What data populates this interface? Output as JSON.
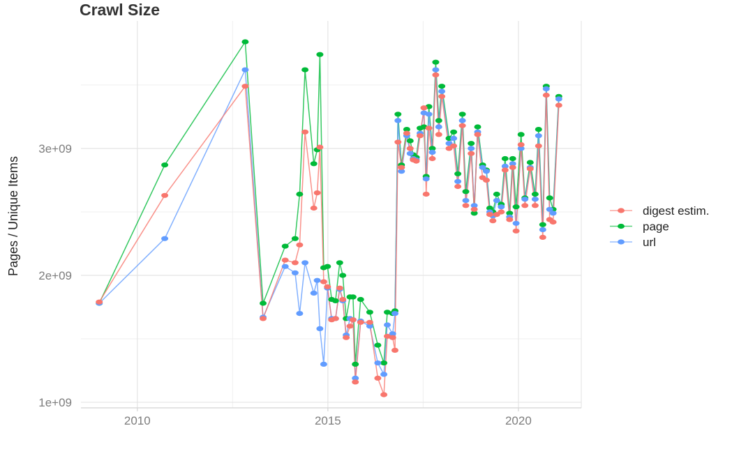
{
  "chart_data": {
    "type": "line",
    "title": "Crawl Size",
    "xlabel": "",
    "ylabel": "Pages / Unique Items",
    "y_values_unit": "billions (1e9)",
    "grid": true,
    "legend_position": "right",
    "xlim": [
      2008.52,
      2021.65
    ],
    "ylim": [
      0.956,
      4.005
    ],
    "x_ticks": [
      {
        "v": 2010,
        "label": "2010"
      },
      {
        "v": 2015,
        "label": "2015"
      },
      {
        "v": 2020,
        "label": "2020"
      }
    ],
    "x_minor": [
      2012.5,
      2017.5
    ],
    "y_ticks": [
      {
        "v": 1,
        "label": "1e+09"
      },
      {
        "v": 2,
        "label": "2e+09"
      },
      {
        "v": 3,
        "label": "3e+09"
      }
    ],
    "y_minor": [
      1.5,
      2.5,
      3.5
    ],
    "x": [
      2009.0,
      2010.72,
      2012.83,
      2013.3,
      2013.88,
      2014.14,
      2014.26,
      2014.4,
      2014.63,
      2014.72,
      2014.79,
      2014.89,
      2014.99,
      2015.1,
      2015.2,
      2015.31,
      2015.39,
      2015.48,
      2015.58,
      2015.66,
      2015.72,
      2015.86,
      2016.1,
      2016.31,
      2016.47,
      2016.56,
      2016.7,
      2016.76,
      2016.84,
      2016.93,
      2017.07,
      2017.16,
      2017.24,
      2017.32,
      2017.42,
      2017.52,
      2017.58,
      2017.65,
      2017.74,
      2017.83,
      2017.91,
      2017.99,
      2018.18,
      2018.3,
      2018.41,
      2018.53,
      2018.62,
      2018.76,
      2018.84,
      2018.93,
      2019.06,
      2019.16,
      2019.25,
      2019.33,
      2019.43,
      2019.55,
      2019.65,
      2019.77,
      2019.85,
      2019.94,
      2020.07,
      2020.17,
      2020.31,
      2020.44,
      2020.53,
      2020.64,
      2020.73,
      2020.82,
      2020.91,
      2021.06
    ],
    "series": [
      {
        "name": "digest estim.",
        "color": "#F8766D",
        "values": [
          1.79,
          2.63,
          3.49,
          1.66,
          2.12,
          2.1,
          2.24,
          3.13,
          2.53,
          2.65,
          3.01,
          1.95,
          1.91,
          1.65,
          1.66,
          1.9,
          1.81,
          1.51,
          1.6,
          1.65,
          1.16,
          1.63,
          1.63,
          1.19,
          1.06,
          1.52,
          1.51,
          1.41,
          3.05,
          2.85,
          3.12,
          3.0,
          2.91,
          2.9,
          3.1,
          3.32,
          2.64,
          3.16,
          2.92,
          3.58,
          3.11,
          3.41,
          3.0,
          3.02,
          2.7,
          3.18,
          2.55,
          2.96,
          2.52,
          3.11,
          2.77,
          2.75,
          2.48,
          2.43,
          2.48,
          2.5,
          2.83,
          2.44,
          2.85,
          2.35,
          3.03,
          2.55,
          2.84,
          2.55,
          3.02,
          2.3,
          3.42,
          2.44,
          2.42,
          3.34
        ]
      },
      {
        "name": "page",
        "color": "#00BA38",
        "values": [
          1.78,
          2.87,
          3.84,
          1.78,
          2.23,
          2.29,
          2.64,
          3.62,
          2.88,
          2.99,
          3.74,
          2.06,
          2.07,
          1.81,
          1.8,
          2.1,
          2.0,
          1.66,
          1.83,
          1.83,
          1.3,
          1.81,
          1.71,
          1.45,
          1.31,
          1.71,
          1.7,
          1.72,
          3.27,
          2.87,
          3.15,
          3.06,
          2.95,
          2.93,
          3.16,
          3.17,
          2.78,
          3.33,
          3.0,
          3.68,
          3.22,
          3.49,
          3.08,
          3.13,
          2.8,
          3.27,
          2.66,
          3.04,
          2.49,
          3.17,
          2.87,
          2.83,
          2.53,
          2.5,
          2.64,
          2.56,
          2.92,
          2.49,
          2.92,
          2.54,
          3.11,
          2.61,
          2.89,
          2.64,
          3.15,
          2.4,
          3.49,
          2.61,
          2.52,
          3.41
        ]
      },
      {
        "name": "url",
        "color": "#619CFF",
        "values": [
          1.78,
          2.29,
          3.62,
          1.67,
          2.07,
          2.02,
          1.7,
          2.1,
          1.86,
          1.96,
          1.58,
          1.3,
          1.9,
          1.66,
          1.66,
          1.89,
          1.8,
          1.53,
          1.66,
          1.65,
          1.19,
          1.64,
          1.6,
          1.31,
          1.22,
          1.61,
          1.54,
          1.7,
          3.22,
          2.82,
          3.1,
          2.96,
          2.92,
          2.91,
          3.12,
          3.28,
          2.76,
          3.27,
          2.97,
          3.62,
          3.17,
          3.45,
          3.04,
          3.08,
          2.74,
          3.22,
          2.59,
          3.0,
          2.55,
          3.13,
          2.85,
          2.82,
          2.5,
          2.47,
          2.59,
          2.54,
          2.86,
          2.46,
          2.88,
          2.41,
          3.0,
          2.6,
          2.85,
          2.6,
          3.1,
          2.36,
          3.47,
          2.52,
          2.49,
          3.39
        ]
      }
    ],
    "colors": {
      "grid_major": "#e2e2e2",
      "grid_minor": "#efefef",
      "axis_line": "#d4d4d4",
      "axis_text": "#7d7d7d",
      "title_text": "#333333"
    }
  }
}
